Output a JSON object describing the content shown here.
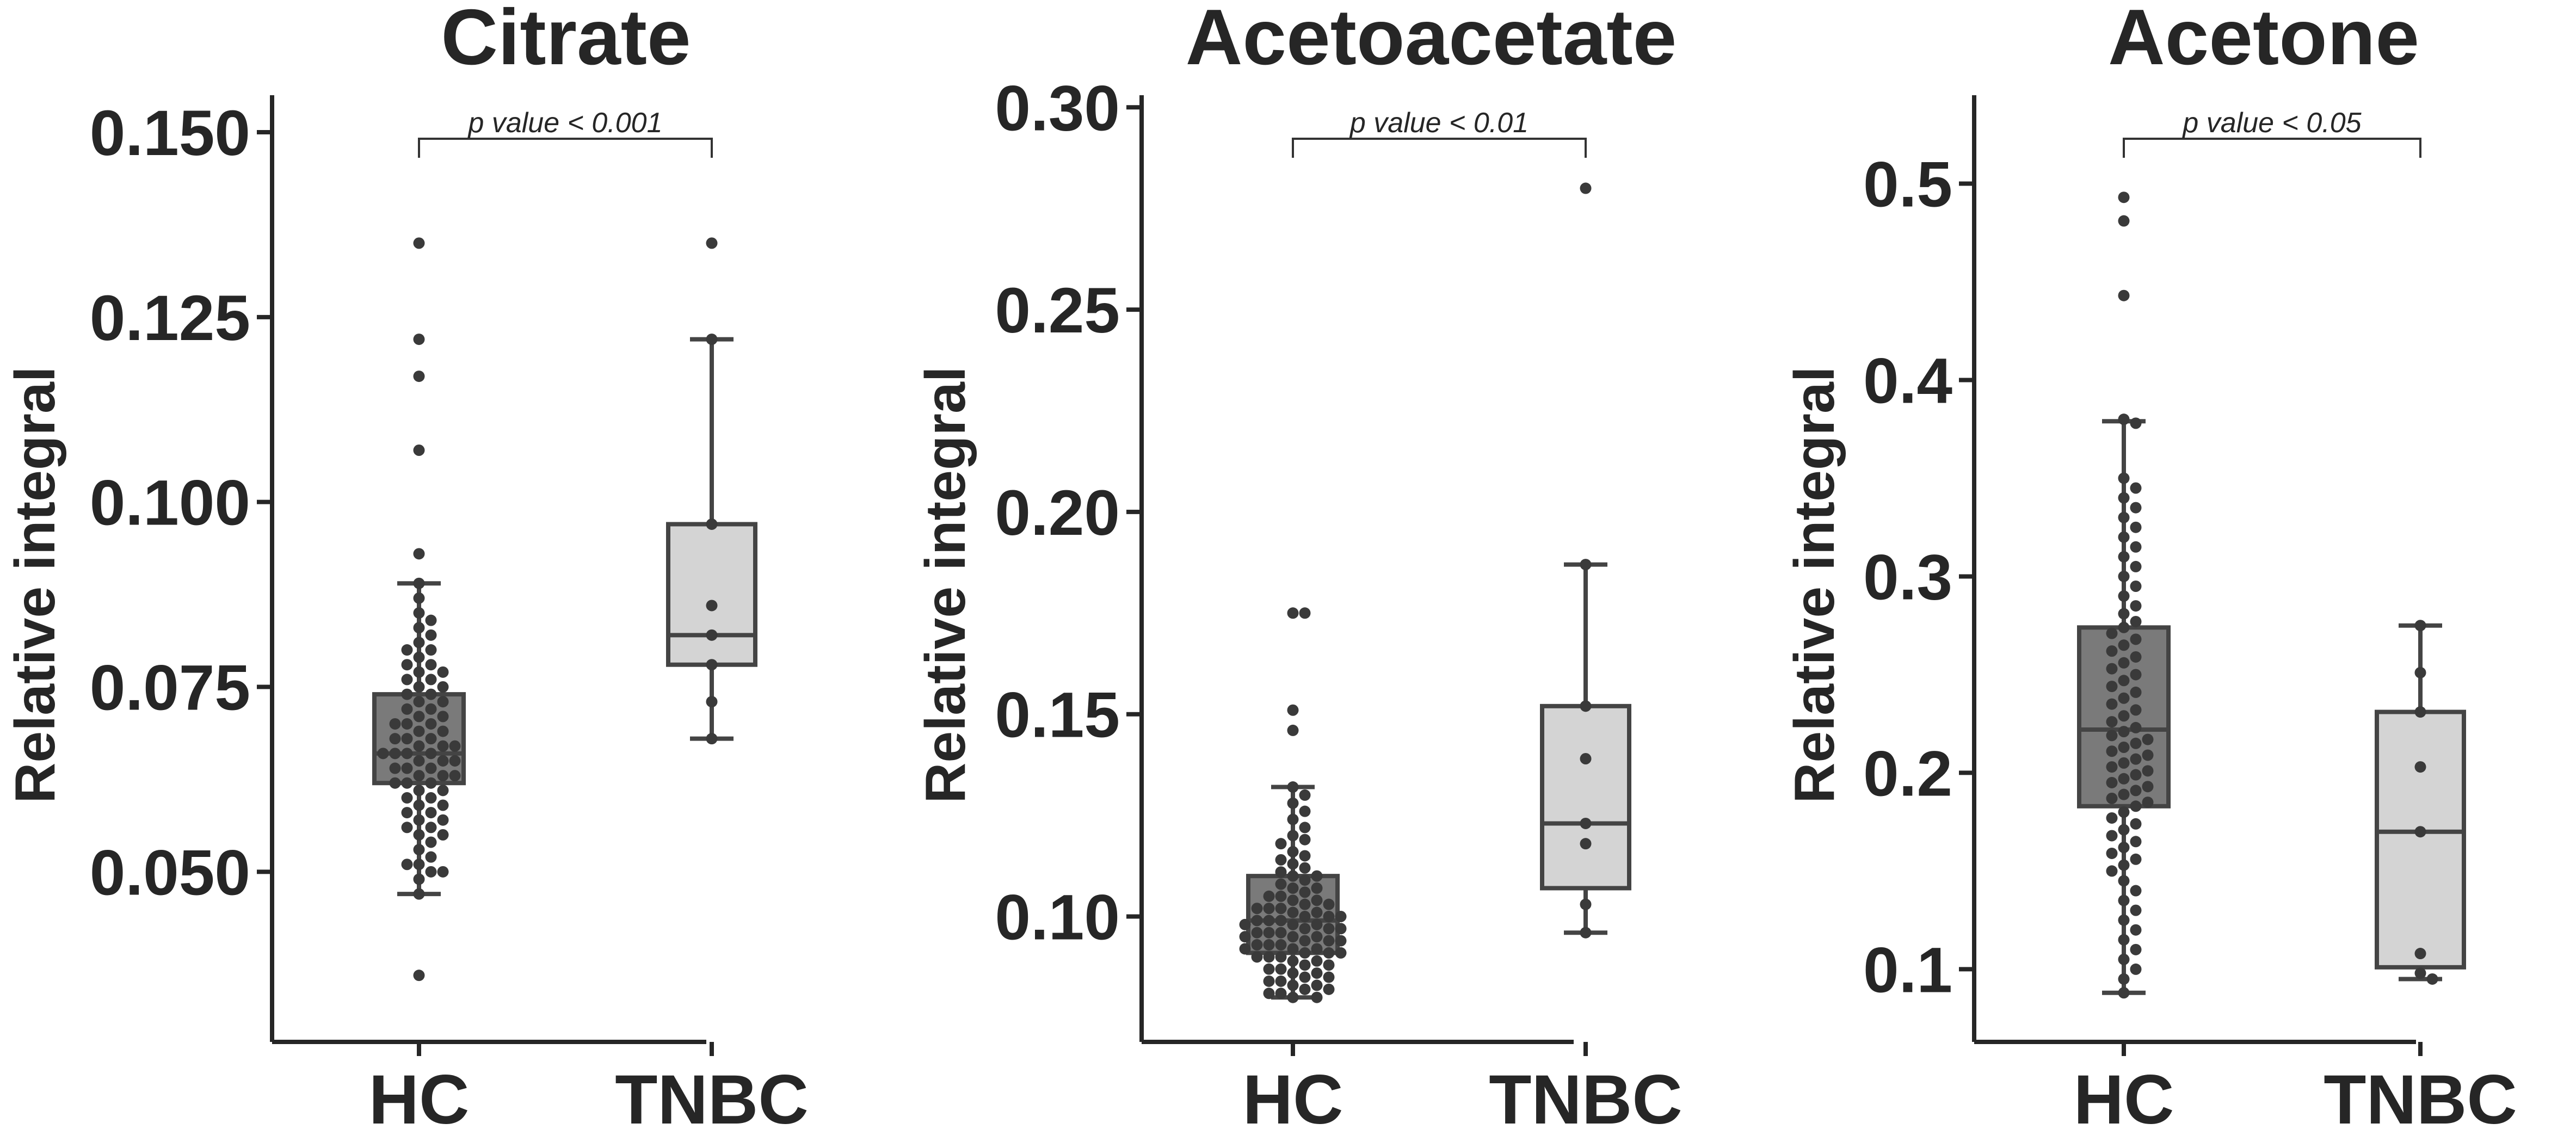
{
  "chart_data": [
    {
      "type": "box",
      "title": "Citrate",
      "ylabel": "Relative integral",
      "xlabel": "",
      "categories": [
        "HC",
        "TNBC"
      ],
      "ylim": [
        0.027,
        0.155
      ],
      "yticks": [
        0.05,
        0.075,
        0.1,
        0.125,
        0.15
      ],
      "ytick_labels": [
        "0.050",
        "0.075",
        "0.100",
        "0.125",
        "0.150"
      ],
      "annotation": "p value < 0.001",
      "boxes": [
        {
          "name": "HC",
          "whisker_low": 0.047,
          "q1": 0.062,
          "median": 0.066,
          "q3": 0.074,
          "whisker_high": 0.089,
          "color": "#7a7a7a"
        },
        {
          "name": "TNBC",
          "whisker_low": 0.068,
          "q1": 0.078,
          "median": 0.082,
          "q3": 0.097,
          "whisker_high": 0.122,
          "color": "#d4d4d4"
        }
      ],
      "points": [
        [
          0.135,
          0.122,
          0.117,
          0.107,
          0.093,
          0.089,
          0.087,
          0.085,
          0.084,
          0.083,
          0.082,
          0.081,
          0.08,
          0.08,
          0.079,
          0.078,
          0.078,
          0.077,
          0.077,
          0.076,
          0.076,
          0.075,
          0.075,
          0.074,
          0.074,
          0.073,
          0.073,
          0.072,
          0.072,
          0.071,
          0.071,
          0.07,
          0.07,
          0.07,
          0.069,
          0.069,
          0.068,
          0.068,
          0.068,
          0.067,
          0.067,
          0.067,
          0.066,
          0.066,
          0.066,
          0.066,
          0.065,
          0.065,
          0.065,
          0.064,
          0.064,
          0.064,
          0.063,
          0.063,
          0.063,
          0.062,
          0.062,
          0.062,
          0.061,
          0.061,
          0.06,
          0.06,
          0.059,
          0.059,
          0.058,
          0.058,
          0.057,
          0.057,
          0.056,
          0.056,
          0.055,
          0.055,
          0.054,
          0.053,
          0.052,
          0.051,
          0.051,
          0.05,
          0.05,
          0.049,
          0.047,
          0.036
        ],
        [
          0.135,
          0.122,
          0.097,
          0.086,
          0.082,
          0.078,
          0.073,
          0.068
        ]
      ]
    },
    {
      "type": "box",
      "title": "Acetoacetate",
      "ylabel": "Relative integral",
      "xlabel": "",
      "categories": [
        "HC",
        "TNBC"
      ],
      "ylim": [
        0.069,
        0.303
      ],
      "yticks": [
        0.1,
        0.15,
        0.2,
        0.25,
        0.3
      ],
      "ytick_labels": [
        "0.10",
        "0.15",
        "0.20",
        "0.25",
        "0.30"
      ],
      "annotation": "p value < 0.01",
      "boxes": [
        {
          "name": "HC",
          "whisker_low": 0.08,
          "q1": 0.091,
          "median": 0.099,
          "q3": 0.11,
          "whisker_high": 0.132,
          "color": "#7a7a7a"
        },
        {
          "name": "TNBC",
          "whisker_low": 0.096,
          "q1": 0.107,
          "median": 0.123,
          "q3": 0.152,
          "whisker_high": 0.187,
          "color": "#d4d4d4"
        }
      ],
      "points": [
        [
          0.175,
          0.175,
          0.151,
          0.146,
          0.132,
          0.13,
          0.128,
          0.126,
          0.124,
          0.122,
          0.12,
          0.119,
          0.118,
          0.116,
          0.115,
          0.114,
          0.113,
          0.112,
          0.111,
          0.11,
          0.11,
          0.109,
          0.108,
          0.107,
          0.107,
          0.106,
          0.105,
          0.105,
          0.104,
          0.104,
          0.103,
          0.103,
          0.102,
          0.102,
          0.102,
          0.101,
          0.101,
          0.1,
          0.1,
          0.1,
          0.099,
          0.099,
          0.099,
          0.098,
          0.098,
          0.098,
          0.097,
          0.097,
          0.097,
          0.096,
          0.096,
          0.096,
          0.095,
          0.095,
          0.095,
          0.094,
          0.094,
          0.094,
          0.093,
          0.093,
          0.093,
          0.092,
          0.092,
          0.092,
          0.091,
          0.091,
          0.091,
          0.09,
          0.09,
          0.09,
          0.089,
          0.089,
          0.088,
          0.088,
          0.087,
          0.087,
          0.086,
          0.086,
          0.085,
          0.085,
          0.084,
          0.084,
          0.083,
          0.083,
          0.082,
          0.082,
          0.081,
          0.081,
          0.08,
          0.08
        ],
        [
          0.28,
          0.187,
          0.152,
          0.139,
          0.123,
          0.118,
          0.103,
          0.096
        ]
      ]
    },
    {
      "type": "box",
      "title": "Acetone",
      "ylabel": "Relative integral",
      "xlabel": "",
      "categories": [
        "HC",
        "TNBC"
      ],
      "ylim": [
        0.063,
        0.545
      ],
      "yticks": [
        0.1,
        0.2,
        0.3,
        0.4,
        0.5
      ],
      "ytick_labels": [
        "0.1",
        "0.2",
        "0.3",
        "0.4",
        "0.5"
      ],
      "annotation": "p value < 0.05",
      "boxes": [
        {
          "name": "HC",
          "whisker_low": 0.088,
          "q1": 0.183,
          "median": 0.222,
          "q3": 0.274,
          "whisker_high": 0.379,
          "color": "#7a7a7a"
        },
        {
          "name": "TNBC",
          "whisker_low": 0.095,
          "q1": 0.101,
          "median": 0.17,
          "q3": 0.231,
          "whisker_high": 0.275,
          "color": "#d4d4d4"
        }
      ],
      "points": [
        [
          0.493,
          0.481,
          0.443,
          0.38,
          0.378,
          0.35,
          0.345,
          0.34,
          0.335,
          0.33,
          0.325,
          0.32,
          0.315,
          0.31,
          0.305,
          0.3,
          0.295,
          0.29,
          0.285,
          0.281,
          0.277,
          0.274,
          0.271,
          0.268,
          0.265,
          0.262,
          0.259,
          0.256,
          0.253,
          0.25,
          0.247,
          0.244,
          0.241,
          0.238,
          0.235,
          0.232,
          0.229,
          0.226,
          0.223,
          0.221,
          0.219,
          0.217,
          0.215,
          0.213,
          0.211,
          0.209,
          0.207,
          0.205,
          0.203,
          0.201,
          0.199,
          0.197,
          0.195,
          0.193,
          0.191,
          0.189,
          0.187,
          0.185,
          0.183,
          0.18,
          0.177,
          0.174,
          0.171,
          0.168,
          0.165,
          0.162,
          0.159,
          0.156,
          0.153,
          0.15,
          0.145,
          0.14,
          0.135,
          0.13,
          0.125,
          0.12,
          0.115,
          0.11,
          0.105,
          0.1,
          0.095,
          0.088
        ],
        [
          0.275,
          0.251,
          0.231,
          0.203,
          0.17,
          0.108,
          0.098,
          0.095
        ]
      ]
    }
  ]
}
